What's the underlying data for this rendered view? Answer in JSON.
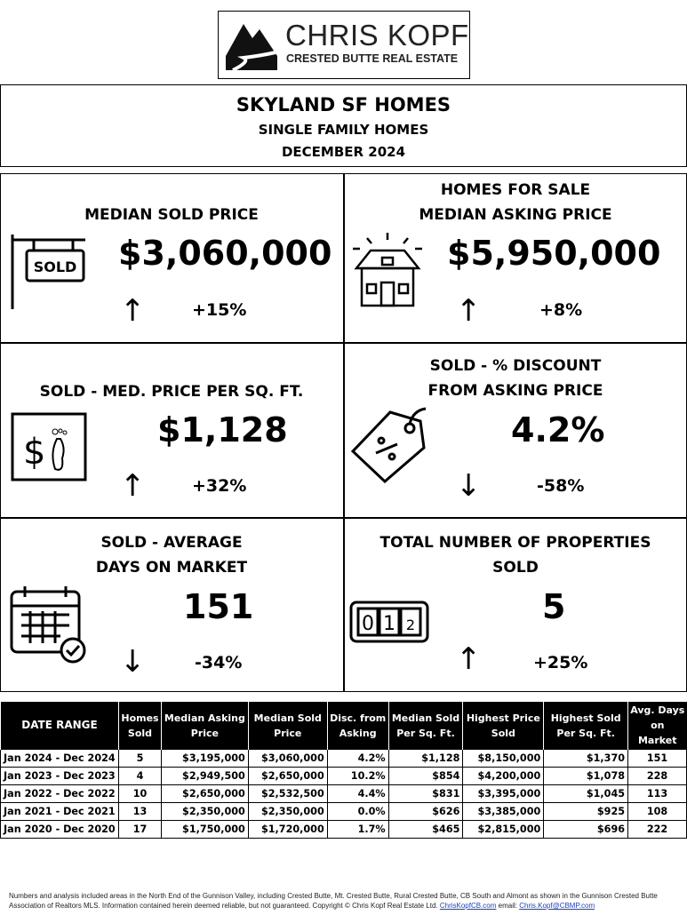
{
  "logo": {
    "name": "CHRIS KOPF",
    "tagline": "CRESTED BUTTE REAL ESTATE"
  },
  "header": {
    "title": "SKYLAND SF HOMES",
    "subtitle": "SINGLE FAMILY HOMES",
    "period": "DECEMBER 2024"
  },
  "stats": [
    {
      "label_lines": [
        "MEDIAN SOLD PRICE"
      ],
      "value": "$3,060,000",
      "change": "+15%",
      "direction": "up",
      "icon": "sold-sign-icon"
    },
    {
      "label_lines": [
        "HOMES FOR SALE",
        "MEDIAN ASKING PRICE"
      ],
      "value": "$5,950,000",
      "change": "+8%",
      "direction": "up",
      "icon": "house-icon"
    },
    {
      "label_lines": [
        "SOLD - MED. PRICE PER SQ. FT."
      ],
      "value": "$1,128",
      "change": "+32%",
      "direction": "up",
      "icon": "dollar-footprint-icon"
    },
    {
      "label_lines": [
        "SOLD - % DISCOUNT",
        "FROM ASKING PRICE"
      ],
      "value": "4.2%",
      "change": "-58%",
      "direction": "down",
      "icon": "percent-tag-icon"
    },
    {
      "label_lines": [
        "SOLD - AVERAGE",
        "DAYS ON MARKET"
      ],
      "value": "151",
      "change": "-34%",
      "direction": "down",
      "icon": "calendar-check-icon"
    },
    {
      "label_lines": [
        "TOTAL NUMBER OF PROPERTIES",
        "SOLD"
      ],
      "value": "5",
      "change": "+25%",
      "direction": "up",
      "icon": "counter-icon"
    }
  ],
  "arrows": {
    "up": "↑",
    "down": "↓"
  },
  "table": {
    "headers": [
      [
        "DATE RANGE"
      ],
      [
        "Homes",
        "Sold"
      ],
      [
        "Median Asking",
        "Price"
      ],
      [
        "Median Sold",
        "Price"
      ],
      [
        "Disc. from",
        "Asking"
      ],
      [
        "Median Sold",
        "Per Sq. Ft."
      ],
      [
        "Highest Price",
        "Sold"
      ],
      [
        "Highest Sold",
        "Per Sq. Ft."
      ],
      [
        "Avg. Days",
        "on Market"
      ]
    ],
    "rows": [
      [
        "Jan 2024 - Dec 2024",
        "5",
        "$3,195,000",
        "$3,060,000",
        "4.2%",
        "$1,128",
        "$8,150,000",
        "$1,370",
        "151"
      ],
      [
        "Jan 2023 - Dec 2023",
        "4",
        "$2,949,500",
        "$2,650,000",
        "10.2%",
        "$854",
        "$4,200,000",
        "$1,078",
        "228"
      ],
      [
        "Jan 2022 - Dec 2022",
        "10",
        "$2,650,000",
        "$2,532,500",
        "4.4%",
        "$831",
        "$3,395,000",
        "$1,045",
        "113"
      ],
      [
        "Jan 2021 - Dec 2021",
        "13",
        "$2,350,000",
        "$2,350,000",
        "0.0%",
        "$626",
        "$3,385,000",
        "$925",
        "108"
      ],
      [
        "Jan 2020 - Dec 2020",
        "17",
        "$1,750,000",
        "$1,720,000",
        "1.7%",
        "$465",
        "$2,815,000",
        "$696",
        "222"
      ]
    ]
  },
  "footer": {
    "text": "Numbers and analysis included areas in the North End of the Gunnison Valley, including Crested Butte, Mt. Crested Butte, Rural Crested Butte, CB South and Almont as shown in the Gunnison Crested Butte Association of Realtors MLS.  Information contained herein deemed reliable, but not guaranteed. Copyright © Chris Kopf Real Estate Ltd. ",
    "site": "ChrisKopfCB.com",
    "email_label": " email: ",
    "email": "Chris.Kopf@CBMP.com"
  }
}
